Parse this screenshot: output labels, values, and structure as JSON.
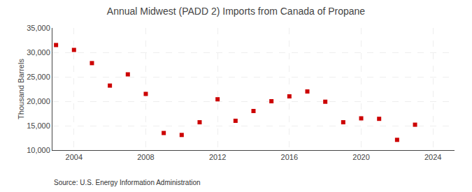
{
  "chart_data": {
    "type": "scatter",
    "title": "Annual Midwest (PADD 2) Imports from Canada of Propane",
    "ylabel": "Thousand Barrels",
    "source": "Source: U.S. Energy Information Administration",
    "x": [
      2003,
      2004,
      2005,
      2006,
      2007,
      2008,
      2009,
      2010,
      2011,
      2012,
      2013,
      2014,
      2015,
      2016,
      2017,
      2018,
      2019,
      2020,
      2021,
      2022,
      2023
    ],
    "values": [
      31500,
      30500,
      27800,
      23200,
      25500,
      21500,
      13500,
      13100,
      15700,
      20400,
      16000,
      18000,
      20000,
      21000,
      22000,
      19900,
      15700,
      16500,
      16400,
      12100,
      15200
    ],
    "color": "#cc0000",
    "marker": "square",
    "xlim": [
      2002.8,
      2025.2
    ],
    "xticks": [
      2004,
      2008,
      2012,
      2016,
      2020,
      2024
    ],
    "ylim": [
      10000,
      35000
    ],
    "yticks": [
      {
        "value": 10000,
        "label": "10,000"
      },
      {
        "value": 15000,
        "label": "15,000"
      },
      {
        "value": 20000,
        "label": "20,000"
      },
      {
        "value": 25000,
        "label": "25,000"
      },
      {
        "value": 30000,
        "label": "30,000"
      },
      {
        "value": 35000,
        "label": "35,000"
      }
    ],
    "grid": true
  }
}
